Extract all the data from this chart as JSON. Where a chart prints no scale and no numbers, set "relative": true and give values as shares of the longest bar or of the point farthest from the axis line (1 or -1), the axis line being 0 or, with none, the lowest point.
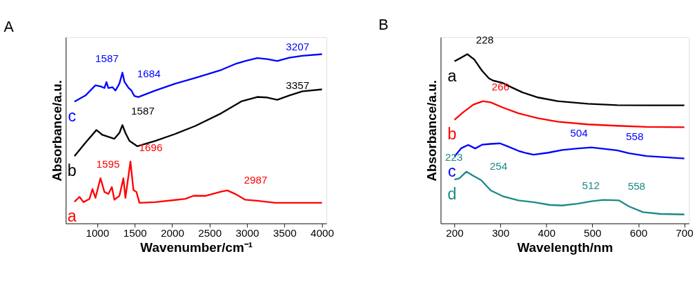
{
  "chart_data": [
    {
      "type": "line",
      "title": "A",
      "xlabel": "Wavenumber/cm⁻¹",
      "ylabel": "Absorbance/a.u.",
      "relative": true,
      "tick_labels": "x",
      "grid": false,
      "legend": false,
      "marker": "none",
      "line_style": "solid",
      "xlim": [
        580,
        4060
      ],
      "xticks": [
        1000,
        1500,
        2000,
        2500,
        3000,
        3500,
        4000
      ],
      "series": [
        {
          "name": "a",
          "color": "#ff0000",
          "x": [
            696,
            763,
            816,
            896,
            936,
            976,
            1043,
            1096,
            1149,
            1195,
            1229,
            1296,
            1349,
            1376,
            1443,
            1483,
            1523,
            1563,
            1776,
            2176,
            2283,
            2443,
            2656,
            2736,
            2843,
            2976,
            3136,
            3376,
            3736,
            4000
          ],
          "values": [
            0.128,
            0.157,
            0.126,
            0.145,
            0.203,
            0.151,
            0.267,
            0.186,
            0.174,
            0.215,
            0.14,
            0.163,
            0.267,
            0.151,
            0.366,
            0.198,
            0.186,
            0.122,
            0.126,
            0.145,
            0.163,
            0.163,
            0.188,
            0.195,
            0.174,
            0.14,
            0.134,
            0.122,
            0.122,
            0.122
          ]
        },
        {
          "name": "b",
          "color": "#000000",
          "x": [
            696,
            843,
            989,
            1069,
            1229,
            1296,
            1336,
            1376,
            1429,
            1536,
            1776,
            2043,
            2309,
            2656,
            2923,
            3136,
            3269,
            3403,
            3563,
            3736,
            4000
          ],
          "values": [
            0.398,
            0.477,
            0.552,
            0.523,
            0.5,
            0.535,
            0.581,
            0.535,
            0.488,
            0.456,
            0.488,
            0.529,
            0.576,
            0.651,
            0.721,
            0.747,
            0.744,
            0.73,
            0.756,
            0.78,
            0.792
          ]
        },
        {
          "name": "c",
          "color": "#0000ff",
          "x": [
            696,
            843,
            976,
            1043,
            1096,
            1123,
            1149,
            1203,
            1243,
            1296,
            1336,
            1363,
            1416,
            1456,
            1496,
            1549,
            1776,
            2043,
            2309,
            2656,
            2843,
            2976,
            3136,
            3269,
            3403,
            3563,
            3736,
            4000
          ],
          "values": [
            0.72,
            0.756,
            0.816,
            0.81,
            0.8,
            0.835,
            0.8,
            0.805,
            0.785,
            0.826,
            0.891,
            0.837,
            0.802,
            0.785,
            0.753,
            0.747,
            0.785,
            0.826,
            0.86,
            0.907,
            0.942,
            0.96,
            0.977,
            0.971,
            0.96,
            0.979,
            0.99,
            1.0
          ]
        }
      ],
      "annotations": [
        {
          "text": "1587",
          "x": 1336,
          "y": 0.891
        },
        {
          "text": "1684",
          "x": 1416,
          "y": 0.802
        },
        {
          "text": "3207",
          "x": 3403,
          "y": 0.96
        },
        {
          "text": "3357",
          "x": 3403,
          "y": 0.73
        },
        {
          "text": "1587",
          "x": 1336,
          "y": 0.581
        },
        {
          "text": "1595",
          "x": 1349,
          "y": 0.267
        },
        {
          "text": "1696",
          "x": 1443,
          "y": 0.366
        },
        {
          "text": "2987",
          "x": 2843,
          "y": 0.174
        }
      ]
    },
    {
      "type": "line",
      "title": "B",
      "xlabel": "Wavelength/nm",
      "ylabel": "Absorbance/a.u.",
      "relative": true,
      "tick_labels": "x",
      "grid": false,
      "legend": false,
      "marker": "none",
      "line_style": "solid",
      "xlim": [
        170,
        710
      ],
      "xticks": [
        200,
        300,
        400,
        500,
        600,
        700
      ],
      "series": [
        {
          "name": "a",
          "color": "#000000",
          "x": [
            200,
            211,
            228,
            243,
            260,
            275,
            284,
            305,
            322,
            348,
            382,
            425,
            490,
            554,
            618,
            700
          ],
          "values": [
            0.958,
            0.974,
            1.0,
            0.969,
            0.902,
            0.857,
            0.844,
            0.83,
            0.807,
            0.774,
            0.744,
            0.722,
            0.707,
            0.699,
            0.698,
            0.698
          ]
        },
        {
          "name": "b",
          "color": "#ff0000",
          "x": [
            200,
            219,
            241,
            262,
            279,
            305,
            339,
            382,
            425,
            490,
            554,
            618,
            700
          ],
          "values": [
            0.612,
            0.657,
            0.702,
            0.722,
            0.715,
            0.685,
            0.651,
            0.621,
            0.601,
            0.585,
            0.577,
            0.57,
            0.568
          ]
        },
        {
          "name": "c",
          "color": "#0000ff",
          "x": [
            200,
            215,
            230,
            245,
            260,
            279,
            299,
            314,
            339,
            352,
            372,
            404,
            434,
            468,
            498,
            528,
            554,
            580,
            618,
            700
          ],
          "values": [
            0.395,
            0.445,
            0.464,
            0.443,
            0.465,
            0.47,
            0.473,
            0.457,
            0.429,
            0.418,
            0.406,
            0.418,
            0.434,
            0.443,
            0.449,
            0.44,
            0.432,
            0.414,
            0.398,
            0.384
          ]
        },
        {
          "name": "d",
          "color": "#1a8a86",
          "x": [
            200,
            211,
            226,
            241,
            258,
            279,
            305,
            339,
            374,
            408,
            434,
            468,
            498,
            524,
            558,
            580,
            610,
            648,
            700
          ],
          "values": [
            0.259,
            0.267,
            0.306,
            0.281,
            0.256,
            0.195,
            0.161,
            0.136,
            0.125,
            0.109,
            0.106,
            0.117,
            0.131,
            0.139,
            0.136,
            0.1,
            0.067,
            0.056,
            0.053
          ]
        }
      ],
      "annotations": [
        {
          "text": "228",
          "x": 228,
          "y": 1.0
        },
        {
          "text": "266",
          "x": 262,
          "y": 0.722
        },
        {
          "text": "504",
          "x": 498,
          "y": 0.449
        },
        {
          "text": "558",
          "x": 554,
          "y": 0.432
        },
        {
          "text": "223",
          "x": 226,
          "y": 0.306
        },
        {
          "text": "254",
          "x": 258,
          "y": 0.256
        },
        {
          "text": "512",
          "x": 524,
          "y": 0.139
        },
        {
          "text": "558",
          "x": 558,
          "y": 0.136
        }
      ]
    }
  ]
}
